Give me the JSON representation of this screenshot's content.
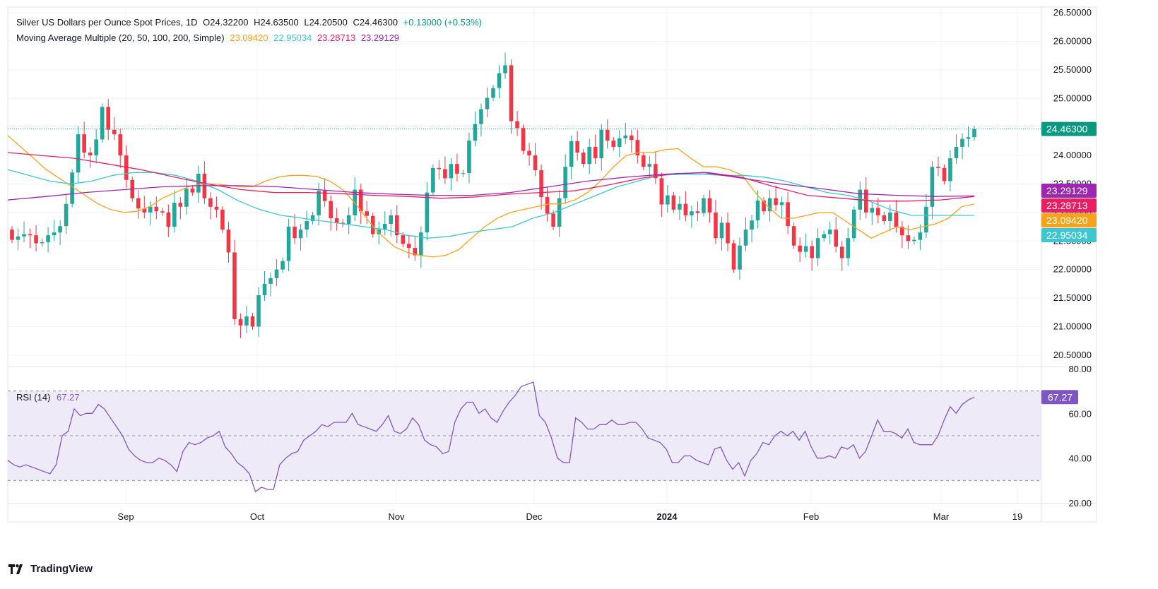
{
  "legend": {
    "symbol": "Silver US Dollars per Ounce Spot Prices, 1D",
    "open_label": "O",
    "open": "24.32200",
    "high_label": "H",
    "high": "24.63500",
    "low_label": "L",
    "low": "24.20500",
    "close_label": "C",
    "close": "24.46300",
    "change": "+0.13000 (+0.53%)",
    "ma_title": "Moving Average Multiple (20, 50, 100, 200, Simple)",
    "ma20": "23.09420",
    "ma50": "22.95034",
    "ma100": "23.28713",
    "ma200": "23.29129",
    "rsi_title": "RSI (14)",
    "rsi_value": "67.27"
  },
  "colors": {
    "up": "#26a69a",
    "down": "#f23645",
    "ma20": "#f7a21b",
    "ma50": "#3dc6cf",
    "ma100": "#e91e63",
    "ma200": "#9c27b0",
    "rsi": "#7e57c2",
    "rsi_band": "#efeaf8",
    "last_price": "#089981"
  },
  "chart_data": [
    {
      "type": "candlestick",
      "title": "Silver US Dollars per Ounce Spot Prices, 1D",
      "ylim": [
        20.3,
        26.6
      ],
      "y_ticks": [
        "26.50000",
        "26.00000",
        "25.50000",
        "25.00000",
        "24.50000",
        "24.00000",
        "23.50000",
        "23.00000",
        "22.50000",
        "22.00000",
        "21.50000",
        "21.00000",
        "20.50000"
      ],
      "x_ticks": [
        "Sep",
        "Oct",
        "Nov",
        "Dec",
        "2024",
        "Feb",
        "Mar",
        "19"
      ],
      "last_price_label": "24.46300",
      "ma_labels": [
        "23.29129",
        "23.28713",
        "23.09420",
        "22.95034"
      ],
      "series": [
        {
          "name": "Silver",
          "o": [
            22.7,
            22.52,
            22.58,
            22.62,
            22.6,
            22.46,
            22.48,
            22.6,
            22.65,
            22.76,
            23.15,
            23.7,
            24.37,
            24.05,
            24.0,
            24.28,
            24.85,
            24.45,
            24.37,
            24.0,
            23.57,
            23.25,
            23.07,
            23.0,
            23.1,
            23.02,
            23.0,
            22.75,
            23.17,
            23.1,
            23.42,
            23.35,
            23.68,
            23.25,
            23.1,
            23.05,
            22.7,
            22.3,
            21.13,
            21.02,
            21.18,
            21.0,
            21.55,
            21.75,
            21.85,
            22.0,
            22.15,
            22.75,
            22.55,
            22.7,
            22.85,
            22.95,
            23.38,
            23.2,
            22.9,
            22.82,
            22.8,
            22.95,
            23.4,
            23.02,
            22.94,
            22.62,
            22.7,
            22.8,
            22.95,
            22.6,
            22.45,
            22.38,
            22.25,
            22.65,
            23.35,
            23.78,
            23.76,
            23.6,
            23.85,
            23.68,
            23.69,
            24.26,
            24.55,
            24.81,
            25.01,
            25.18,
            25.44,
            25.58,
            24.6,
            24.48,
            24.08,
            24.0,
            23.74,
            23.27,
            22.98,
            22.75,
            23.25,
            23.8,
            24.25,
            24.05,
            23.85,
            24.15,
            23.95,
            24.45,
            24.26,
            24.15,
            24.3,
            24.35,
            24.27,
            24.0,
            23.8,
            23.85,
            23.6,
            23.14,
            23.3,
            23.05,
            23.15,
            22.95,
            23.02,
            22.99,
            23.25,
            23.0,
            22.55,
            22.82,
            22.46,
            22.0,
            22.42,
            22.7,
            22.86,
            23.21,
            23.02,
            23.25,
            23.13,
            23.18,
            22.76,
            22.42,
            22.31,
            22.41,
            22.2,
            22.55,
            22.62,
            22.7,
            22.4,
            22.2,
            22.55,
            23.05,
            23.4,
            23.0,
            23.08,
            22.95,
            22.85,
            23.0,
            22.75,
            22.6,
            22.5,
            22.52,
            22.65,
            23.1,
            23.8,
            23.78,
            23.55,
            23.95,
            24.15,
            24.29,
            24.32
          ]
        },
        {
          "name": "Silver_close",
          "c": [
            22.52,
            22.58,
            22.62,
            22.6,
            22.46,
            22.48,
            22.6,
            22.65,
            22.76,
            23.15,
            23.7,
            24.37,
            24.05,
            24.0,
            24.28,
            24.85,
            24.45,
            24.37,
            24.0,
            23.57,
            23.25,
            23.07,
            23.0,
            23.1,
            23.02,
            23.0,
            22.75,
            23.17,
            23.1,
            23.42,
            23.35,
            23.68,
            23.25,
            23.1,
            23.05,
            22.7,
            22.3,
            21.13,
            21.02,
            21.18,
            21.0,
            21.55,
            21.75,
            21.85,
            22.0,
            22.15,
            22.75,
            22.55,
            22.7,
            22.85,
            22.95,
            23.38,
            23.2,
            22.9,
            22.82,
            22.8,
            22.95,
            23.4,
            23.02,
            22.94,
            22.62,
            22.7,
            22.8,
            22.95,
            22.6,
            22.45,
            22.38,
            22.25,
            22.65,
            23.35,
            23.78,
            23.76,
            23.6,
            23.85,
            23.68,
            23.69,
            24.26,
            24.55,
            24.81,
            25.01,
            25.18,
            25.44,
            25.58,
            24.6,
            24.48,
            24.08,
            24.0,
            23.74,
            23.27,
            22.98,
            22.75,
            23.25,
            23.8,
            24.25,
            24.05,
            23.85,
            24.15,
            23.95,
            24.45,
            24.26,
            24.15,
            24.3,
            24.35,
            24.27,
            24.0,
            23.8,
            23.85,
            23.6,
            23.14,
            23.3,
            23.05,
            23.15,
            22.95,
            23.02,
            22.99,
            23.25,
            23.0,
            22.55,
            22.82,
            22.46,
            22.0,
            22.42,
            22.7,
            22.86,
            23.21,
            23.02,
            23.25,
            23.13,
            23.18,
            22.76,
            22.42,
            22.31,
            22.41,
            22.2,
            22.55,
            22.62,
            22.7,
            22.4,
            22.2,
            22.55,
            23.05,
            23.4,
            23.0,
            23.08,
            22.95,
            22.85,
            23.0,
            22.75,
            22.6,
            22.5,
            22.52,
            22.65,
            23.1,
            23.8,
            23.78,
            23.55,
            23.95,
            24.15,
            24.29,
            24.32,
            24.46
          ]
        },
        {
          "name": "MA20",
          "values": [
            24.35,
            24.15,
            23.95,
            23.75,
            23.6,
            23.45,
            23.3,
            23.15,
            23.05,
            23.0,
            23.02,
            23.1,
            23.25,
            23.35,
            23.45,
            23.5,
            23.5,
            23.48,
            23.45,
            23.45,
            23.55,
            23.62,
            23.65,
            23.65,
            23.63,
            23.55,
            23.4,
            23.15,
            22.85,
            22.6,
            22.4,
            22.3,
            22.25,
            22.22,
            22.25,
            22.35,
            22.55,
            22.75,
            22.9,
            23.0,
            23.05,
            23.1,
            23.15,
            23.15,
            23.22,
            23.35,
            23.55,
            23.8,
            24.0,
            24.05,
            24.05,
            24.1,
            24.12,
            23.95,
            23.8,
            23.8,
            23.75,
            23.65,
            23.35,
            23.1,
            22.9,
            22.9,
            22.95,
            23.0,
            23.0,
            22.85,
            22.7,
            22.55,
            22.65,
            22.75,
            22.7,
            22.75,
            22.8,
            22.9,
            23.1,
            23.15
          ]
        },
        {
          "name": "MA50",
          "values": [
            23.75,
            23.65,
            23.55,
            23.5,
            23.55,
            23.65,
            23.7,
            23.7,
            23.65,
            23.55,
            23.4,
            23.2,
            23.05,
            22.95,
            22.9,
            22.85,
            22.8,
            22.75,
            22.7,
            22.6,
            22.55,
            22.58,
            22.65,
            22.7,
            22.75,
            22.9,
            23.0,
            23.15,
            23.3,
            23.45,
            23.55,
            23.65,
            23.67,
            23.67,
            23.65,
            23.65,
            23.62,
            23.55,
            23.45,
            23.35,
            23.3,
            23.2,
            23.05,
            22.95,
            22.95,
            22.95,
            22.95
          ]
        },
        {
          "name": "MA100",
          "values": [
            24.05,
            24.0,
            23.95,
            23.85,
            23.75,
            23.62,
            23.5,
            23.4,
            23.35,
            23.35,
            23.33,
            23.3,
            23.28,
            23.25,
            23.27,
            23.32,
            23.35,
            23.38,
            23.48,
            23.6,
            23.68,
            23.7,
            23.62,
            23.45,
            23.3,
            23.25,
            23.2,
            23.2,
            23.22,
            23.28
          ]
        },
        {
          "name": "MA200",
          "values": [
            23.22,
            23.28,
            23.35,
            23.4,
            23.45,
            23.47,
            23.47,
            23.45,
            23.4,
            23.35,
            23.32,
            23.3,
            23.3,
            23.35,
            23.45,
            23.55,
            23.62,
            23.67,
            23.7,
            23.6,
            23.5,
            23.42,
            23.33,
            23.3,
            23.28,
            23.29
          ]
        }
      ]
    },
    {
      "type": "line",
      "title": "RSI (14)",
      "ylim": [
        20,
        80
      ],
      "y_ticks": [
        "80.00",
        "60.00",
        "40.00",
        "20.00"
      ],
      "bands": [
        30,
        50,
        70
      ],
      "last_label": "67.27",
      "series": [
        {
          "name": "RSI",
          "values": [
            39,
            37,
            36,
            37,
            36,
            35,
            34,
            33,
            37,
            50,
            52,
            62,
            59,
            60,
            60,
            64,
            62,
            58,
            54,
            50,
            44,
            41,
            39,
            38,
            38,
            40,
            39,
            37,
            34,
            43,
            47,
            46,
            47,
            49,
            50,
            52,
            45,
            42,
            38,
            36,
            33,
            25,
            27,
            26,
            26,
            37,
            40,
            42,
            43,
            48,
            50,
            52,
            55,
            54,
            56,
            56,
            56,
            60,
            55,
            54,
            53,
            52,
            55,
            59,
            52,
            51,
            53,
            58,
            55,
            48,
            46,
            45,
            42,
            43,
            56,
            62,
            65,
            65,
            60,
            62,
            58,
            56,
            61,
            65,
            68,
            72,
            73,
            74,
            59,
            56,
            49,
            40,
            38,
            38,
            58,
            56,
            53,
            53,
            55,
            55,
            57,
            55,
            55,
            56,
            56,
            53,
            49,
            48,
            47,
            44,
            38,
            38,
            41,
            41,
            39,
            38,
            37,
            44,
            45,
            39,
            35,
            38,
            32,
            39,
            42,
            47,
            46,
            50,
            52,
            50,
            52,
            48,
            52,
            45,
            40,
            40,
            41,
            40,
            45,
            44,
            46,
            40,
            43,
            50,
            57,
            52,
            52,
            51,
            49,
            53,
            47,
            46,
            46,
            46,
            50,
            57,
            63,
            60,
            64,
            66,
            67.27
          ]
        }
      ]
    }
  ],
  "footer": {
    "brand": "TradingView"
  }
}
